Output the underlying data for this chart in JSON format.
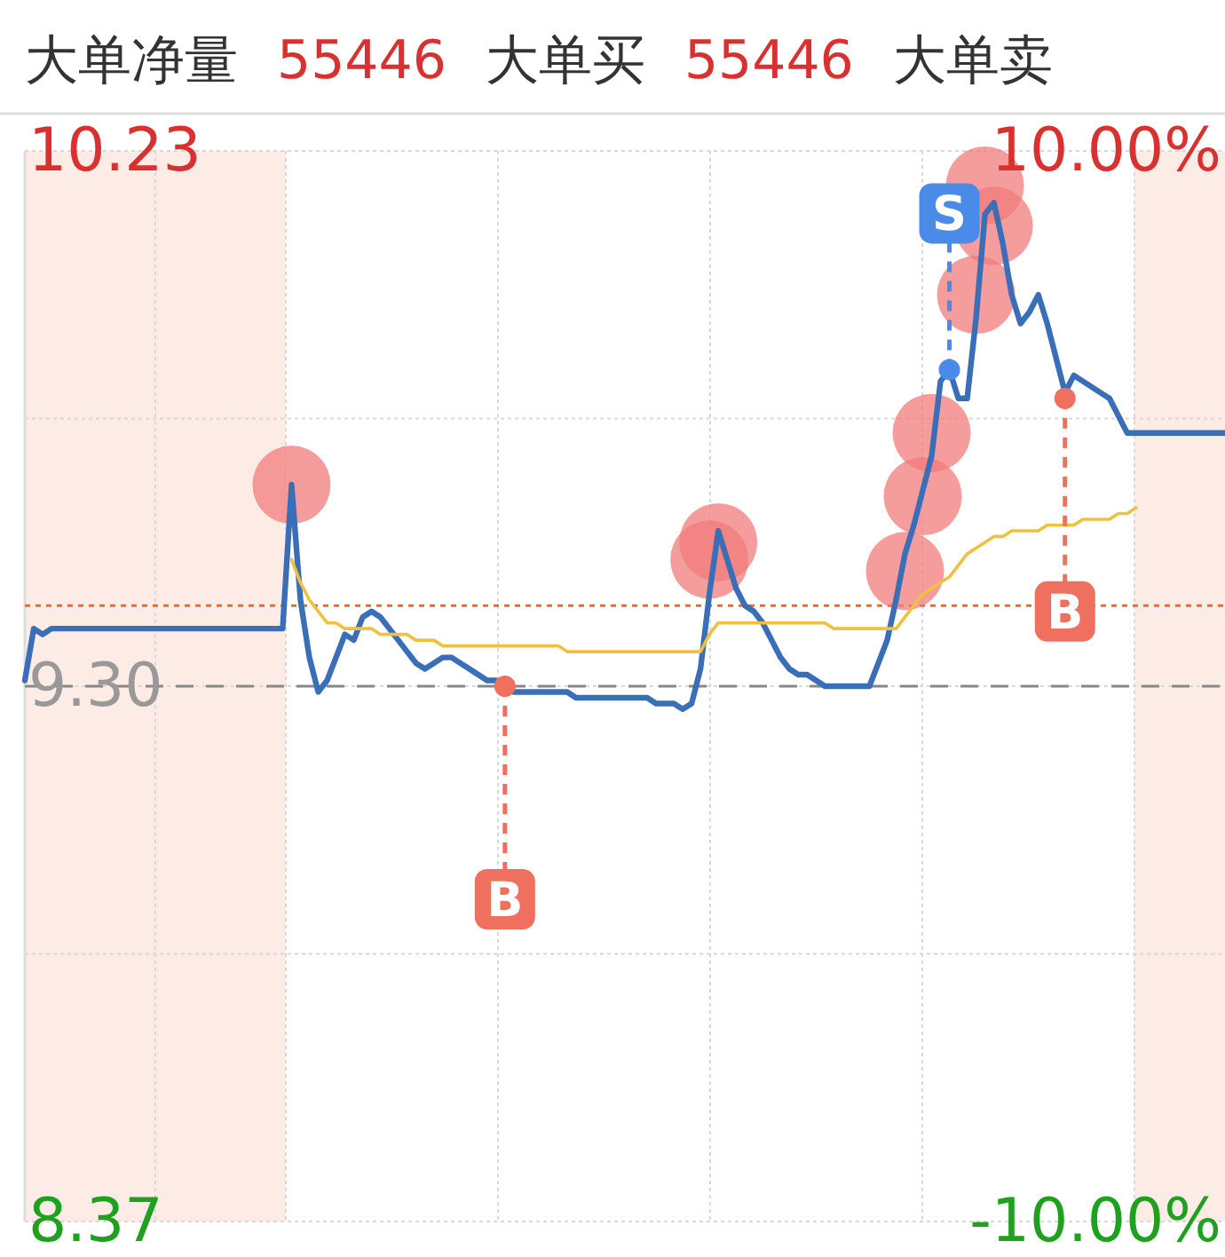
{
  "chart_data": {
    "type": "line",
    "annotations": [
      "大单净量",
      "55446",
      "大单买",
      "55446",
      "大单卖"
    ],
    "categories": [
      null,
      null,
      null,
      null,
      null,
      null,
      null,
      null,
      null,
      null,
      null,
      null,
      null,
      null,
      null,
      null,
      null,
      null,
      null,
      null,
      null,
      null,
      null,
      null,
      null,
      null,
      null,
      null,
      null,
      null,
      null,
      null,
      null,
      null,
      null,
      null,
      null,
      null,
      null,
      null,
      null,
      null,
      null,
      null,
      null,
      null,
      null,
      null,
      null,
      null,
      null,
      null,
      null,
      null,
      null,
      null,
      null,
      null,
      null,
      null,
      null,
      null,
      null,
      null,
      null,
      null,
      null,
      null,
      null,
      null,
      null,
      null,
      null,
      null,
      null,
      null,
      null,
      null,
      null,
      null,
      null,
      null,
      null,
      null,
      null,
      null,
      null,
      null,
      null,
      null,
      null,
      null,
      null,
      null,
      null,
      null,
      null,
      null,
      null,
      null,
      null,
      null,
      null,
      null,
      null,
      null,
      null,
      null,
      null,
      null,
      null,
      null,
      null,
      null,
      null,
      null,
      null,
      null,
      null,
      null,
      null,
      null,
      null,
      null,
      null,
      null,
      null,
      null,
      null,
      null,
      null,
      null,
      null,
      null,
      null,
      null
    ],
    "ylim": [
      8.37,
      10.23
    ],
    "yticks": [
      {
        "value": 8.37,
        "label": "8.37"
      },
      {
        "value": 8.835,
        "label": null
      },
      {
        "value": 9.3,
        "label": "9.30"
      },
      {
        "value": 9.765,
        "label": null
      },
      {
        "value": 10.23,
        "label": "10.23"
      }
    ],
    "y2lim": [
      -10,
      10
    ],
    "y2ticks": [
      {
        "value": -10,
        "label": "-10.00%"
      },
      {
        "value": 10,
        "label": "10.00%"
      }
    ],
    "grid": true,
    "ref_lines": [
      {
        "axis": "y",
        "value": 9.3,
        "color": "#888888",
        "line_style": "dashed"
      },
      {
        "axis": "y",
        "value": 9.44,
        "color": "#e07030",
        "line_style": "dotted"
      }
    ],
    "series": [
      {
        "color": "#3a6fb8",
        "marker": "none",
        "line_style": "solid",
        "values": [
          9.31,
          9.4,
          9.39,
          9.4,
          9.4,
          9.4,
          9.4,
          9.4,
          9.4,
          9.4,
          9.4,
          9.4,
          9.4,
          9.4,
          9.4,
          9.4,
          9.4,
          9.4,
          9.4,
          9.4,
          9.4,
          9.4,
          9.4,
          9.4,
          9.4,
          9.4,
          9.4,
          9.4,
          9.4,
          9.4,
          9.65,
          9.45,
          9.35,
          9.29,
          9.31,
          9.35,
          9.39,
          9.38,
          9.42,
          9.43,
          9.42,
          9.4,
          9.38,
          9.36,
          9.34,
          9.33,
          9.34,
          9.35,
          9.35,
          9.34,
          9.33,
          9.32,
          9.31,
          9.31,
          9.3,
          9.29,
          9.29,
          9.29,
          9.29,
          9.29,
          9.29,
          9.29,
          9.28,
          9.28,
          9.28,
          9.28,
          9.28,
          9.28,
          9.28,
          9.28,
          9.28,
          9.27,
          9.27,
          9.27,
          9.26,
          9.27,
          9.33,
          9.46,
          9.57,
          9.52,
          9.47,
          9.44,
          9.43,
          9.41,
          9.38,
          9.35,
          9.33,
          9.32,
          9.32,
          9.31,
          9.3,
          9.3,
          9.3,
          9.3,
          9.3,
          9.3,
          9.34,
          9.38,
          9.45,
          9.53,
          9.58,
          9.64,
          9.7,
          9.83,
          9.85,
          9.8,
          9.8,
          9.94,
          10.12,
          10.14,
          10.07,
          9.98,
          9.93,
          9.95,
          9.98,
          9.93,
          9.87,
          9.81,
          9.84,
          9.83,
          9.82,
          9.81,
          9.8,
          9.77,
          9.74,
          9.74,
          9.74,
          9.74,
          9.74,
          9.74,
          9.74,
          9.74,
          9.74,
          9.74,
          9.74,
          9.74
        ]
      },
      {
        "color": "#f0c040",
        "marker": "none",
        "line_style": "solid",
        "values": [
          null,
          null,
          null,
          null,
          null,
          null,
          null,
          null,
          null,
          null,
          null,
          null,
          null,
          null,
          null,
          null,
          null,
          null,
          null,
          null,
          null,
          null,
          null,
          null,
          null,
          null,
          null,
          null,
          null,
          null,
          9.52,
          9.48,
          9.45,
          9.43,
          9.41,
          9.41,
          9.4,
          9.4,
          9.4,
          9.4,
          9.39,
          9.39,
          9.39,
          9.39,
          9.38,
          9.38,
          9.38,
          9.37,
          9.37,
          9.37,
          9.37,
          9.37,
          9.37,
          9.37,
          9.37,
          9.37,
          9.37,
          9.37,
          9.37,
          9.37,
          9.37,
          9.36,
          9.36,
          9.36,
          9.36,
          9.36,
          9.36,
          9.36,
          9.36,
          9.36,
          9.36,
          9.36,
          9.36,
          9.36,
          9.36,
          9.36,
          9.36,
          9.39,
          9.41,
          9.41,
          9.41,
          9.41,
          9.41,
          9.41,
          9.41,
          9.41,
          9.41,
          9.41,
          9.41,
          9.41,
          9.41,
          9.4,
          9.4,
          9.4,
          9.4,
          9.4,
          9.4,
          9.4,
          9.4,
          9.42,
          9.44,
          9.46,
          9.47,
          9.48,
          9.49,
          9.51,
          9.53,
          9.54,
          9.55,
          9.56,
          9.56,
          9.57,
          9.57,
          9.57,
          9.57,
          9.58,
          9.58,
          9.58,
          9.58,
          9.59,
          9.59,
          9.59,
          9.59,
          9.6,
          9.6,
          9.61,
          null,
          null,
          null,
          null,
          null,
          null,
          null,
          null,
          null,
          null
        ]
      },
      {
        "type": "scatter",
        "color": "#f27c7c",
        "marker": "circle",
        "values": [
          null,
          null,
          null,
          null,
          null,
          null,
          null,
          null,
          null,
          null,
          null,
          null,
          null,
          null,
          null,
          null,
          null,
          null,
          null,
          null,
          null,
          null,
          null,
          null,
          null,
          null,
          null,
          null,
          null,
          null,
          9.65,
          null,
          null,
          null,
          null,
          null,
          null,
          null,
          null,
          null,
          null,
          null,
          null,
          null,
          null,
          null,
          null,
          null,
          null,
          null,
          null,
          null,
          null,
          null,
          null,
          null,
          null,
          null,
          null,
          null,
          null,
          null,
          null,
          null,
          null,
          null,
          null,
          null,
          null,
          null,
          null,
          null,
          null,
          null,
          null,
          null,
          null,
          9.52,
          9.55,
          null,
          null,
          null,
          null,
          null,
          null,
          null,
          null,
          null,
          null,
          null,
          null,
          null,
          null,
          null,
          null,
          null,
          null,
          null,
          null,
          9.5,
          null,
          9.63,
          9.74,
          null,
          null,
          null,
          null,
          9.98,
          10.17,
          10.1,
          null,
          null,
          null,
          null,
          null,
          null,
          null,
          null,
          null,
          null,
          null,
          null,
          null,
          null,
          null,
          null,
          null,
          null,
          null,
          null,
          null,
          null,
          null,
          null,
          null,
          null
        ]
      },
      {
        "type": "scatter",
        "color": "#f07060",
        "marker": "circle",
        "values": [
          null,
          null,
          null,
          null,
          null,
          null,
          null,
          null,
          null,
          null,
          null,
          null,
          null,
          null,
          null,
          null,
          null,
          null,
          null,
          null,
          null,
          null,
          null,
          null,
          null,
          null,
          null,
          null,
          null,
          null,
          null,
          null,
          null,
          null,
          null,
          null,
          null,
          null,
          null,
          null,
          null,
          null,
          null,
          null,
          null,
          null,
          null,
          null,
          null,
          null,
          null,
          null,
          null,
          null,
          9.3,
          null,
          null,
          null,
          null,
          null,
          null,
          null,
          null,
          null,
          null,
          null,
          null,
          null,
          null,
          null,
          null,
          null,
          null,
          null,
          null,
          null,
          null,
          null,
          null,
          null,
          null,
          null,
          null,
          null,
          null,
          null,
          null,
          null,
          null,
          null,
          null,
          null,
          null,
          null,
          null,
          null,
          null,
          null,
          null,
          null,
          null,
          null,
          null,
          null,
          null,
          null,
          null,
          null,
          null,
          null,
          null,
          null,
          null,
          null,
          null,
          null,
          null,
          9.8,
          null,
          null,
          null,
          null,
          null,
          null,
          null,
          null,
          null,
          null,
          null,
          null,
          null,
          null,
          null,
          null,
          null,
          null
        ],
        "value_labels": [
          null,
          null,
          null,
          null,
          null,
          null,
          null,
          null,
          null,
          null,
          null,
          null,
          null,
          null,
          null,
          null,
          null,
          null,
          null,
          null,
          null,
          null,
          null,
          null,
          null,
          null,
          null,
          null,
          null,
          null,
          null,
          null,
          null,
          null,
          null,
          null,
          null,
          null,
          null,
          null,
          null,
          null,
          null,
          null,
          null,
          null,
          null,
          null,
          null,
          null,
          null,
          null,
          null,
          null,
          "B",
          null,
          null,
          null,
          null,
          null,
          null,
          null,
          null,
          null,
          null,
          null,
          null,
          null,
          null,
          null,
          null,
          null,
          null,
          null,
          null,
          null,
          null,
          null,
          null,
          null,
          null,
          null,
          null,
          null,
          null,
          null,
          null,
          null,
          null,
          null,
          null,
          null,
          null,
          null,
          null,
          null,
          null,
          null,
          null,
          null,
          null,
          null,
          null,
          null,
          null,
          null,
          null,
          null,
          null,
          null,
          null,
          null,
          null,
          null,
          null,
          null,
          null,
          "B",
          null,
          null,
          null,
          null,
          null,
          null,
          null,
          null,
          null,
          null,
          null,
          null,
          null,
          null,
          null,
          null,
          null,
          null
        ]
      },
      {
        "type": "scatter",
        "color": "#4a8ae8",
        "marker": "circle",
        "values": [
          null,
          null,
          null,
          null,
          null,
          null,
          null,
          null,
          null,
          null,
          null,
          null,
          null,
          null,
          null,
          null,
          null,
          null,
          null,
          null,
          null,
          null,
          null,
          null,
          null,
          null,
          null,
          null,
          null,
          null,
          null,
          null,
          null,
          null,
          null,
          null,
          null,
          null,
          null,
          null,
          null,
          null,
          null,
          null,
          null,
          null,
          null,
          null,
          null,
          null,
          null,
          null,
          null,
          null,
          null,
          null,
          null,
          null,
          null,
          null,
          null,
          null,
          null,
          null,
          null,
          null,
          null,
          null,
          null,
          null,
          null,
          null,
          null,
          null,
          null,
          null,
          null,
          null,
          null,
          null,
          null,
          null,
          null,
          null,
          null,
          null,
          null,
          null,
          null,
          null,
          null,
          null,
          null,
          null,
          null,
          null,
          null,
          null,
          null,
          null,
          null,
          null,
          null,
          null,
          9.85,
          null,
          null,
          null,
          null,
          null,
          null,
          null,
          null,
          null,
          null,
          null,
          null,
          null,
          null,
          null,
          null,
          null,
          null,
          null,
          null,
          null,
          null,
          null,
          null,
          null,
          null,
          null,
          null,
          null,
          null,
          null
        ],
        "value_labels": [
          null,
          null,
          null,
          null,
          null,
          null,
          null,
          null,
          null,
          null,
          null,
          null,
          null,
          null,
          null,
          null,
          null,
          null,
          null,
          null,
          null,
          null,
          null,
          null,
          null,
          null,
          null,
          null,
          null,
          null,
          null,
          null,
          null,
          null,
          null,
          null,
          null,
          null,
          null,
          null,
          null,
          null,
          null,
          null,
          null,
          null,
          null,
          null,
          null,
          null,
          null,
          null,
          null,
          null,
          null,
          null,
          null,
          null,
          null,
          null,
          null,
          null,
          null,
          null,
          null,
          null,
          null,
          null,
          null,
          null,
          null,
          null,
          null,
          null,
          null,
          null,
          null,
          null,
          null,
          null,
          null,
          null,
          null,
          null,
          null,
          null,
          null,
          null,
          null,
          null,
          null,
          null,
          null,
          null,
          null,
          null,
          null,
          null,
          null,
          null,
          null,
          null,
          null,
          null,
          "S",
          null,
          null,
          null,
          null,
          null,
          null,
          null,
          null,
          null,
          null,
          null,
          null,
          null,
          null,
          null,
          null,
          null,
          null,
          null,
          null,
          null,
          null,
          null,
          null,
          null,
          null,
          null,
          null,
          null,
          null,
          null
        ]
      }
    ]
  }
}
